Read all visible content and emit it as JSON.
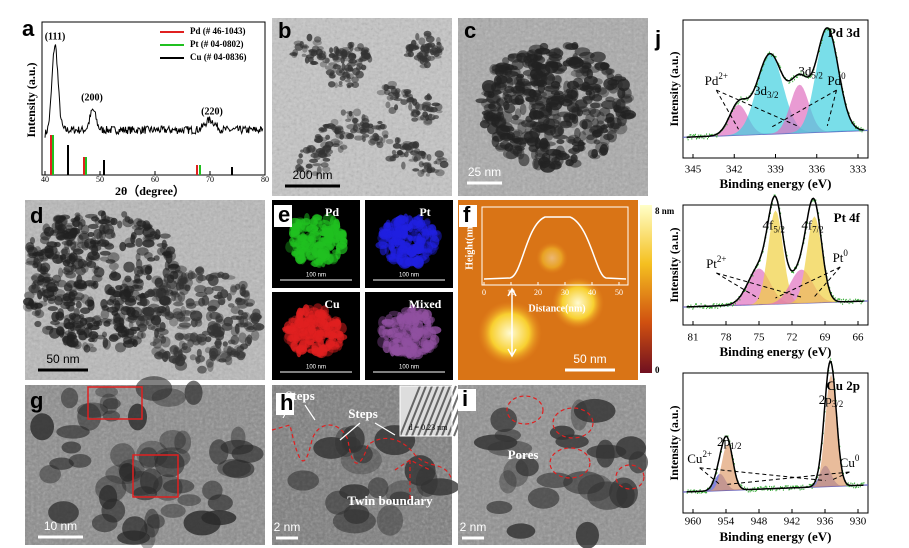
{
  "panels": {
    "a": {
      "letter": "a",
      "y_label": "Intensity (a.u.)",
      "x_label": "2θ（degree）",
      "x_ticks": [
        "40",
        "50",
        "60",
        "70",
        "80"
      ],
      "peaks": [
        "(111)",
        "(200)",
        "(220)"
      ],
      "legend": [
        "Pd (# 46-1043)",
        "Pt (# 04-0802)",
        "Cu (# 04-0836)"
      ]
    },
    "b": {
      "letter": "b",
      "scale": "200 nm"
    },
    "c": {
      "letter": "c",
      "scale": "25 nm"
    },
    "d": {
      "letter": "d",
      "scale": "50 nm"
    },
    "e": {
      "letter": "e",
      "maps": [
        {
          "label": "Pd",
          "scale": "100 nm"
        },
        {
          "label": "Pt",
          "scale": "100 nm"
        },
        {
          "label": "Cu",
          "scale": "100 nm"
        },
        {
          "label": "Mixed",
          "scale": "100 nm"
        }
      ]
    },
    "f": {
      "letter": "f",
      "y_label": "Height(nm)",
      "x_label": "Distance(nm)",
      "x_ticks": [
        "0",
        "10",
        "20",
        "30",
        "40",
        "50"
      ],
      "colorbar": [
        "8 nm",
        "0"
      ],
      "scale": "50 nm"
    },
    "g": {
      "letter": "g",
      "scale": "10 nm"
    },
    "h": {
      "letter": "h",
      "labels": [
        "Steps",
        "Steps",
        "Twin boundary"
      ],
      "spacing": "d = 0.23 nm",
      "scale": "2 nm"
    },
    "i": {
      "letter": "i",
      "label": "Pores",
      "scale": "2 nm"
    },
    "j": {
      "letter": "j",
      "y_label": "Intensity (a.u.)",
      "x_label": "Binding energy (eV)",
      "spectra": [
        {
          "title": "Pd 3d",
          "x_ticks": [
            "345",
            "342",
            "339",
            "336",
            "333"
          ],
          "peaks": [
            {
              "base": "Pd",
              "sup": "2+"
            },
            {
              "base": "3d",
              "sub": "3/2"
            },
            {
              "base": "3d",
              "sub": "5/2"
            },
            {
              "base": "Pd",
              "sup": "0"
            }
          ]
        },
        {
          "title": "Pt 4f",
          "x_ticks": [
            "81",
            "78",
            "75",
            "72",
            "69",
            "66"
          ],
          "peaks": [
            {
              "base": "Pt",
              "sup": "2+"
            },
            {
              "base": "4f",
              "sub": "5/2"
            },
            {
              "base": "4f",
              "sub": "7/2"
            },
            {
              "base": "Pt",
              "sup": "0"
            }
          ]
        },
        {
          "title": "Cu 2p",
          "x_ticks": [
            "960",
            "954",
            "948",
            "942",
            "936",
            "930"
          ],
          "peaks": [
            {
              "base": "Cu",
              "sup": "2+"
            },
            {
              "base": "2p",
              "sub": "1/2"
            },
            {
              "base": "2p",
              "sub": "3/2"
            },
            {
              "base": "Cu",
              "sup": "0"
            }
          ]
        }
      ]
    }
  }
}
